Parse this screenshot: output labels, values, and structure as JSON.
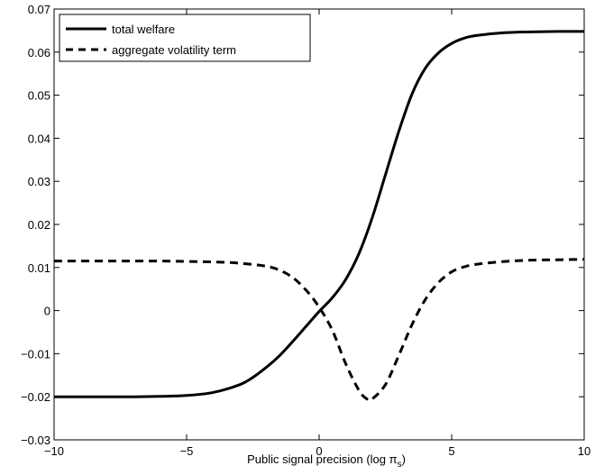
{
  "chart_data": {
    "type": "line",
    "title": "",
    "xlabel": "Public signal precision (log π",
    "xlabel_sub": "s",
    "xlabel_close": ")",
    "ylabel": "",
    "xlim": [
      -10,
      10
    ],
    "ylim": [
      -0.03,
      0.07
    ],
    "xticks": [
      -10,
      -5,
      0,
      5,
      10
    ],
    "yticks": [
      -0.03,
      -0.02,
      -0.01,
      0,
      0.01,
      0.02,
      0.03,
      0.04,
      0.05,
      0.06,
      0.07
    ],
    "xtick_labels": [
      "−10",
      "−5",
      "0",
      "5",
      "10"
    ],
    "ytick_labels": [
      "−0.03",
      "−0.02",
      "−0.01",
      "0",
      "0.01",
      "0.02",
      "0.03",
      "0.04",
      "0.05",
      "0.06",
      "0.07"
    ],
    "grid": false,
    "legend_position": "top-left",
    "series": [
      {
        "name": "total welfare",
        "style": "solid",
        "color": "#000000",
        "x": [
          -10,
          -9,
          -8,
          -7,
          -6,
          -5,
          -4,
          -3,
          -2.5,
          -2,
          -1.5,
          -1,
          -0.5,
          0,
          0.5,
          1,
          1.5,
          2,
          2.5,
          3,
          3.5,
          4,
          4.5,
          5,
          5.5,
          6,
          7,
          8,
          9,
          10
        ],
        "y": [
          -0.02,
          -0.02,
          -0.02,
          -0.02,
          -0.0199,
          -0.0197,
          -0.019,
          -0.0172,
          -0.0155,
          -0.0132,
          -0.0105,
          -0.0072,
          -0.0037,
          -0.0002,
          0.003,
          0.0072,
          0.0132,
          0.0215,
          0.0315,
          0.0415,
          0.0502,
          0.0562,
          0.0598,
          0.062,
          0.0633,
          0.0639,
          0.0645,
          0.0647,
          0.0648,
          0.0648
        ]
      },
      {
        "name": "aggregate volatility term",
        "style": "dashed",
        "color": "#000000",
        "x": [
          -10,
          -8,
          -6,
          -5,
          -4,
          -3,
          -2,
          -1.5,
          -1,
          -0.5,
          0,
          0.5,
          1,
          1.5,
          1.8,
          2,
          2.5,
          3,
          3.5,
          4,
          4.5,
          5,
          5.5,
          6,
          7,
          8,
          9,
          10
        ],
        "y": [
          0.0115,
          0.0115,
          0.0115,
          0.0114,
          0.0113,
          0.011,
          0.0103,
          0.0094,
          0.0077,
          0.0048,
          0.0008,
          -0.0046,
          -0.0123,
          -0.0185,
          -0.0205,
          -0.0205,
          -0.0172,
          -0.0105,
          -0.0033,
          0.0025,
          0.0065,
          0.009,
          0.0102,
          0.0108,
          0.0114,
          0.0117,
          0.0118,
          0.0119
        ]
      }
    ]
  }
}
